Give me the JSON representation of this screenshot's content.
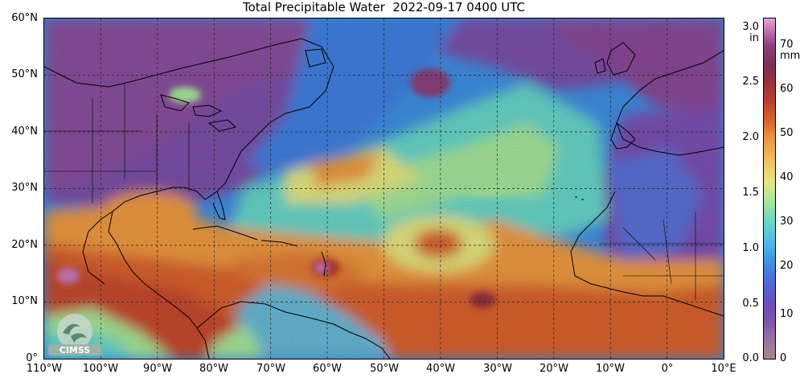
{
  "title": "Total Precipitable Water  2022-09-17 0400 UTC",
  "lat_labels": [
    "60°N",
    "50°N",
    "40°N",
    "30°N",
    "20°N",
    "10°N",
    "0°"
  ],
  "lon_labels": [
    "110°W",
    "100°W",
    "90°W",
    "80°W",
    "70°W",
    "60°W",
    "50°W",
    "40°W",
    "30°W",
    "20°W",
    "10°W",
    "0°",
    "10°E"
  ],
  "colorbar": {
    "in_unit": "in",
    "mm_unit": "mm",
    "in_ticks": [
      "3.0",
      "2.5",
      "2.0",
      "1.5",
      "1.0",
      "0.5",
      "0.0"
    ],
    "mm_ticks": [
      "70",
      "60",
      "50",
      "40",
      "30",
      "20",
      "10",
      "0"
    ]
  },
  "logo_text": "CIMSS",
  "map_extent": {
    "lon_min": -110,
    "lon_max": 10,
    "lat_min": 0,
    "lat_max": 60
  }
}
